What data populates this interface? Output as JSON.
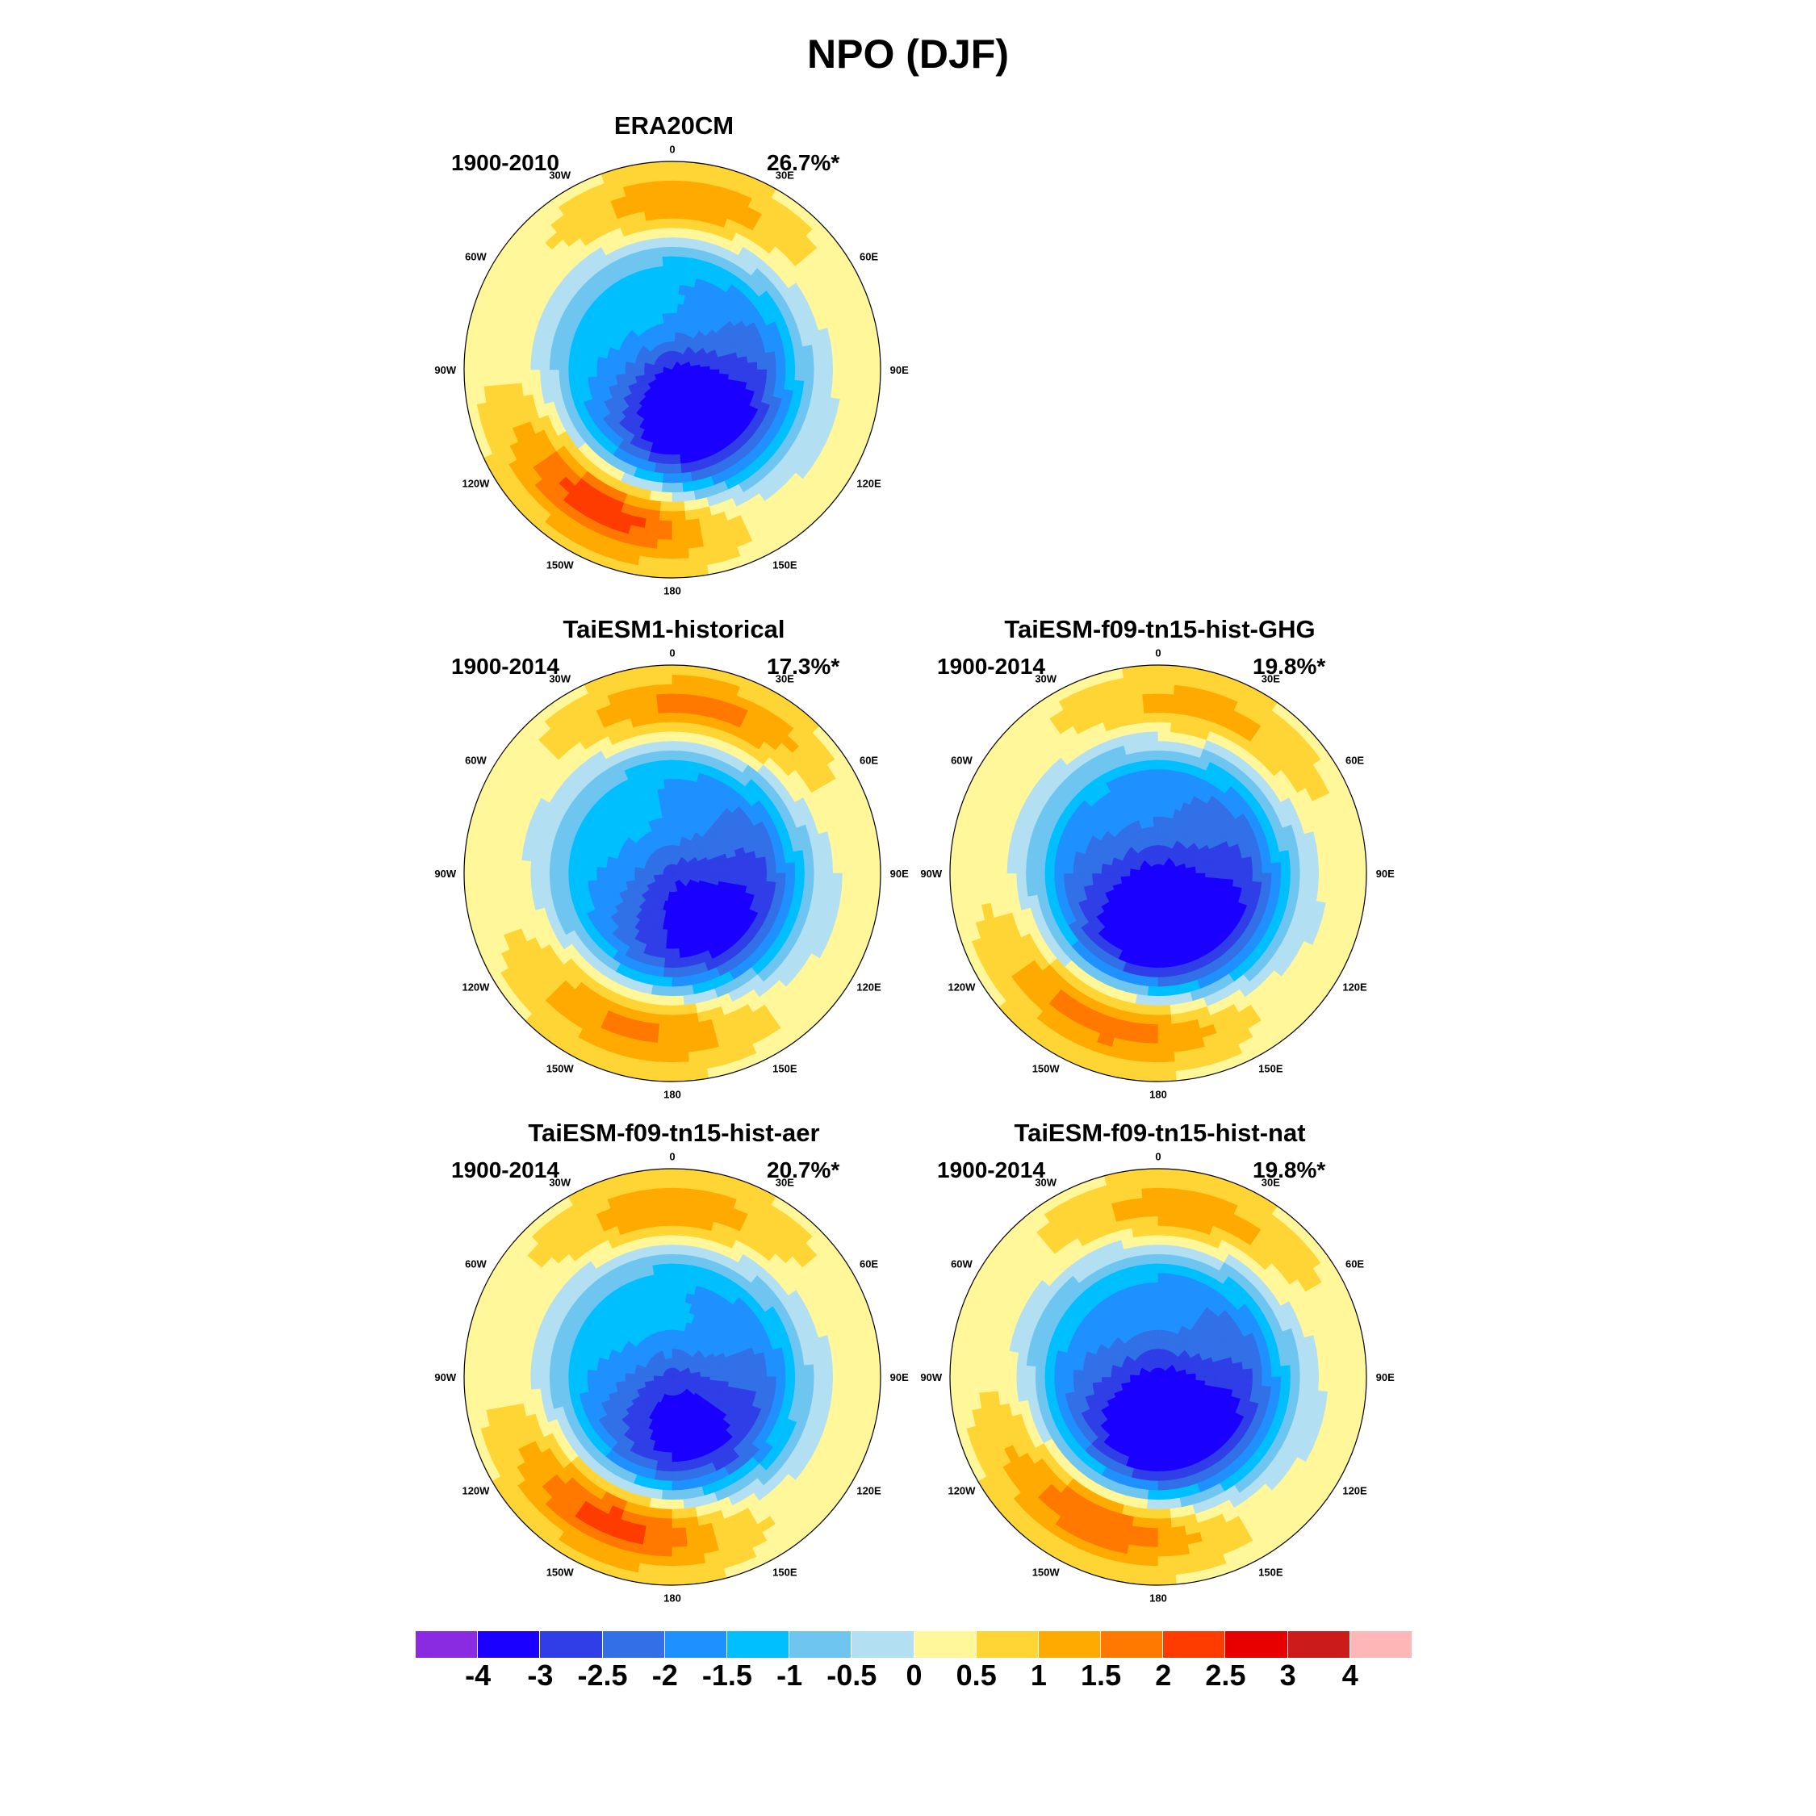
{
  "figure": {
    "title": "NPO (DJF)"
  },
  "longitude_labels": {
    "n180": "180",
    "w150": "150W",
    "e150": "150E",
    "w120": "120W",
    "e120": "120E",
    "w90": "90W",
    "e90": "90E",
    "w60": "60W",
    "e60": "60E",
    "w30": "30W",
    "e30": "30E",
    "z0": "0"
  },
  "panels": [
    {
      "title": "ERA20CM",
      "period": "1900-2010",
      "variance": "26.7%*",
      "pattern": {
        "pac_max": 2.6,
        "pac_lon": -155,
        "pole_min": -3.8,
        "pole_lon": 160,
        "atl_max": 1.3,
        "atl_lon": 5,
        "spread": 1.0
      }
    },
    {
      "title": "TaiESM1-historical",
      "period": "1900-2014",
      "variance": "17.3%*",
      "pattern": {
        "pac_max": 2.0,
        "pac_lon": -170,
        "pole_min": -3.2,
        "pole_lon": 150,
        "atl_max": 1.6,
        "atl_lon": 10,
        "spread": 1.1
      }
    },
    {
      "title": "TaiESM-f09-tn15-hist-GHG",
      "period": "1900-2014",
      "variance": "19.8%*",
      "pattern": {
        "pac_max": 2.6,
        "pac_lon": -165,
        "pole_min": -3.8,
        "pole_lon": 175,
        "atl_max": 1.1,
        "atl_lon": 15,
        "spread": 1.2
      }
    },
    {
      "title": "TaiESM-f09-tn15-hist-aer",
      "period": "1900-2014",
      "variance": "20.7%*",
      "pattern": {
        "pac_max": 2.6,
        "pac_lon": -160,
        "pole_min": -3.2,
        "pole_lon": 170,
        "atl_max": 1.3,
        "atl_lon": 0,
        "spread": 1.05
      }
    },
    {
      "title": "TaiESM-f09-tn15-hist-nat",
      "period": "1900-2014",
      "variance": "19.8%*",
      "pattern": {
        "pac_max": 2.6,
        "pac_lon": -160,
        "pole_min": -3.8,
        "pole_lon": 175,
        "atl_max": 1.2,
        "atl_lon": 10,
        "spread": 1.15
      }
    }
  ],
  "colorbar": {
    "labels": [
      "-4",
      "-3",
      "-2.5",
      "-2",
      "-1.5",
      "-1",
      "-0.5",
      "0",
      "0.5",
      "1",
      "1.5",
      "2",
      "2.5",
      "3",
      "4"
    ],
    "colors": [
      "#8a2be2",
      "#1a00ff",
      "#2f3ee6",
      "#3170e6",
      "#1e90ff",
      "#00bfff",
      "#6ec6f0",
      "#b3dff2",
      "#fff799",
      "#ffd535",
      "#ffaa00",
      "#ff7800",
      "#ff3c00",
      "#e60000",
      "#cc1b1b",
      "#ffb6b6"
    ],
    "levels": [
      -4,
      -3,
      -2.5,
      -2,
      -1.5,
      -1,
      -0.5,
      0,
      0.5,
      1,
      1.5,
      2,
      2.5,
      3,
      4
    ]
  }
}
